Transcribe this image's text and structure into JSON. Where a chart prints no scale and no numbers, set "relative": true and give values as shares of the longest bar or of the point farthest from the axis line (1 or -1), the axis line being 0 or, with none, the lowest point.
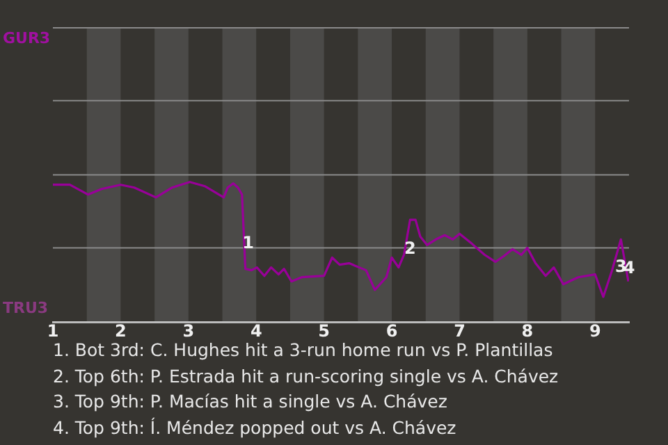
{
  "chart_data": {
    "type": "line",
    "relative": true,
    "x": [
      1,
      1.25,
      1.52,
      1.72,
      2,
      2.2,
      2.52,
      2.76,
      3.02,
      3.24,
      3.52,
      3.58,
      3.66,
      3.73,
      3.79,
      3.84,
      3.93,
      4.01,
      4.12,
      4.22,
      4.33,
      4.41,
      4.52,
      4.67,
      5,
      5.12,
      5.23,
      5.37,
      5.52,
      5.62,
      5.75,
      5.92,
      6,
      6.1,
      6.18,
      6.27,
      6.35,
      6.42,
      6.52,
      6.65,
      6.78,
      6.9,
      7,
      7.18,
      7.37,
      7.53,
      7.65,
      7.78,
      7.91,
      8,
      8.12,
      8.27,
      8.39,
      8.53,
      8.75,
      9,
      9.12,
      9.25,
      9.38,
      9.49
    ],
    "series": [
      {
        "color": "#990099",
        "values": [
          0.98,
          0.98,
          0.91,
          0.95,
          0.98,
          0.96,
          0.89,
          0.96,
          1,
          0.97,
          0.89,
          0.96,
          0.99,
          0.96,
          0.91,
          0.38,
          0.37,
          0.39,
          0.33,
          0.39,
          0.34,
          0.38,
          0.29,
          0.32,
          0.33,
          0.46,
          0.41,
          0.42,
          0.39,
          0.37,
          0.23,
          0.32,
          0.46,
          0.39,
          0.48,
          0.73,
          0.73,
          0.61,
          0.55,
          0.59,
          0.62,
          0.59,
          0.63,
          0.56,
          0.48,
          0.43,
          0.47,
          0.52,
          0.48,
          0.53,
          0.42,
          0.33,
          0.39,
          0.27,
          0.32,
          0.34,
          0.18,
          0.37,
          0.59,
          0.29
        ]
      }
    ],
    "xlim": [
      1,
      9.5
    ],
    "xticks": [
      1,
      2,
      3,
      4,
      5,
      6,
      7,
      8,
      9
    ],
    "ref_lines": [
      {
        "axis": "y",
        "value": 0.53,
        "color": "#8a8a8a"
      },
      {
        "axis": "y",
        "value": 1.05,
        "color": "#8a8a8a"
      },
      {
        "axis": "y",
        "value": 1.58,
        "color": "#8a8a8a"
      },
      {
        "axis": "y",
        "value": 2.1,
        "color": "#8a8a8a"
      }
    ],
    "marker": "none",
    "bands": [
      {
        "axis": "x",
        "from": 1.5,
        "to": 2,
        "color": "#4b4a48"
      },
      {
        "axis": "x",
        "from": 2.5,
        "to": 3,
        "color": "#4b4a48"
      },
      {
        "axis": "x",
        "from": 3.5,
        "to": 4,
        "color": "#4b4a48"
      },
      {
        "axis": "x",
        "from": 4.5,
        "to": 5,
        "color": "#4b4a48"
      },
      {
        "axis": "x",
        "from": 5.5,
        "to": 6,
        "color": "#4b4a48"
      },
      {
        "axis": "x",
        "from": 6.5,
        "to": 7,
        "color": "#4b4a48"
      },
      {
        "axis": "x",
        "from": 7.5,
        "to": 8,
        "color": "#4b4a48"
      },
      {
        "axis": "x",
        "from": 8.5,
        "to": 9,
        "color": "#4b4a48"
      }
    ],
    "annotations": [
      "GUR3",
      "TRU3",
      {
        "text": "1",
        "x": 3.88,
        "y": 0.56
      },
      {
        "text": "2",
        "x": 6.27,
        "y": 0.52
      },
      {
        "text": "3",
        "x": 9.38,
        "y": 0.39
      },
      {
        "text": "4",
        "x": 9.5,
        "y": 0.38
      },
      "1. Bot 3rd: C. Hughes hit a 3-run home run vs P. Plantillas",
      "2. Top 6th: P. Estrada hit a run-scoring single vs A. Chávez",
      "3. Top 9th: P. Macías hit a single vs A. Chávez",
      "4. Top 9th: Í. Méndez popped out vs A. Chávez"
    ]
  }
}
